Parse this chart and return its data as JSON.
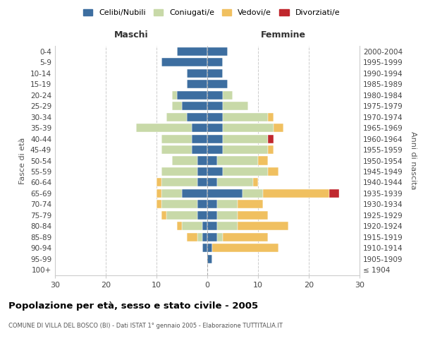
{
  "age_groups": [
    "100+",
    "95-99",
    "90-94",
    "85-89",
    "80-84",
    "75-79",
    "70-74",
    "65-69",
    "60-64",
    "55-59",
    "50-54",
    "45-49",
    "40-44",
    "35-39",
    "30-34",
    "25-29",
    "20-24",
    "15-19",
    "10-14",
    "5-9",
    "0-4"
  ],
  "birth_years": [
    "≤ 1904",
    "1905-1909",
    "1910-1914",
    "1915-1919",
    "1920-1924",
    "1925-1929",
    "1930-1934",
    "1935-1939",
    "1940-1944",
    "1945-1949",
    "1950-1954",
    "1955-1959",
    "1960-1964",
    "1965-1969",
    "1970-1974",
    "1975-1979",
    "1980-1984",
    "1985-1989",
    "1990-1994",
    "1995-1999",
    "2000-2004"
  ],
  "male": {
    "celibi": [
      0,
      0,
      1,
      1,
      1,
      2,
      2,
      5,
      2,
      2,
      2,
      3,
      3,
      3,
      4,
      5,
      6,
      4,
      4,
      9,
      6
    ],
    "coniugati": [
      0,
      0,
      0,
      1,
      4,
      6,
      7,
      4,
      7,
      7,
      5,
      6,
      6,
      11,
      4,
      2,
      1,
      0,
      0,
      0,
      0
    ],
    "vedovi": [
      0,
      0,
      0,
      2,
      1,
      1,
      1,
      1,
      1,
      0,
      0,
      0,
      0,
      0,
      0,
      0,
      0,
      0,
      0,
      0,
      0
    ],
    "divorziati": [
      0,
      0,
      0,
      0,
      0,
      0,
      0,
      0,
      0,
      0,
      0,
      0,
      0,
      0,
      0,
      0,
      0,
      0,
      0,
      0,
      0
    ]
  },
  "female": {
    "nubili": [
      0,
      1,
      1,
      2,
      2,
      2,
      2,
      7,
      2,
      3,
      2,
      3,
      3,
      3,
      3,
      3,
      3,
      4,
      3,
      3,
      4
    ],
    "coniugate": [
      0,
      0,
      0,
      1,
      4,
      4,
      4,
      4,
      7,
      9,
      8,
      9,
      9,
      10,
      9,
      5,
      2,
      0,
      0,
      0,
      0
    ],
    "vedove": [
      0,
      0,
      13,
      9,
      10,
      6,
      5,
      13,
      1,
      2,
      2,
      1,
      0,
      2,
      1,
      0,
      0,
      0,
      0,
      0,
      0
    ],
    "divorziate": [
      0,
      0,
      0,
      0,
      0,
      0,
      0,
      2,
      0,
      0,
      0,
      0,
      1,
      0,
      0,
      0,
      0,
      0,
      0,
      0,
      0
    ]
  },
  "colors": {
    "celibi_nubili": "#3d6ea0",
    "coniugati": "#c8d9a8",
    "vedovi": "#f0c060",
    "divorziati": "#c0272d"
  },
  "xlim": 30,
  "title": "Popolazione per età, sesso e stato civile - 2005",
  "subtitle": "COMUNE DI VILLA DEL BOSCO (BI) - Dati ISTAT 1° gennaio 2005 - Elaborazione TUTTITALIA.IT",
  "ylabel_left": "Fasce di età",
  "ylabel_right": "Anni di nascita",
  "label_maschi": "Maschi",
  "label_femmine": "Femmine",
  "legend_labels": [
    "Celibi/Nubili",
    "Coniugati/e",
    "Vedovi/e",
    "Divorziati/e"
  ]
}
